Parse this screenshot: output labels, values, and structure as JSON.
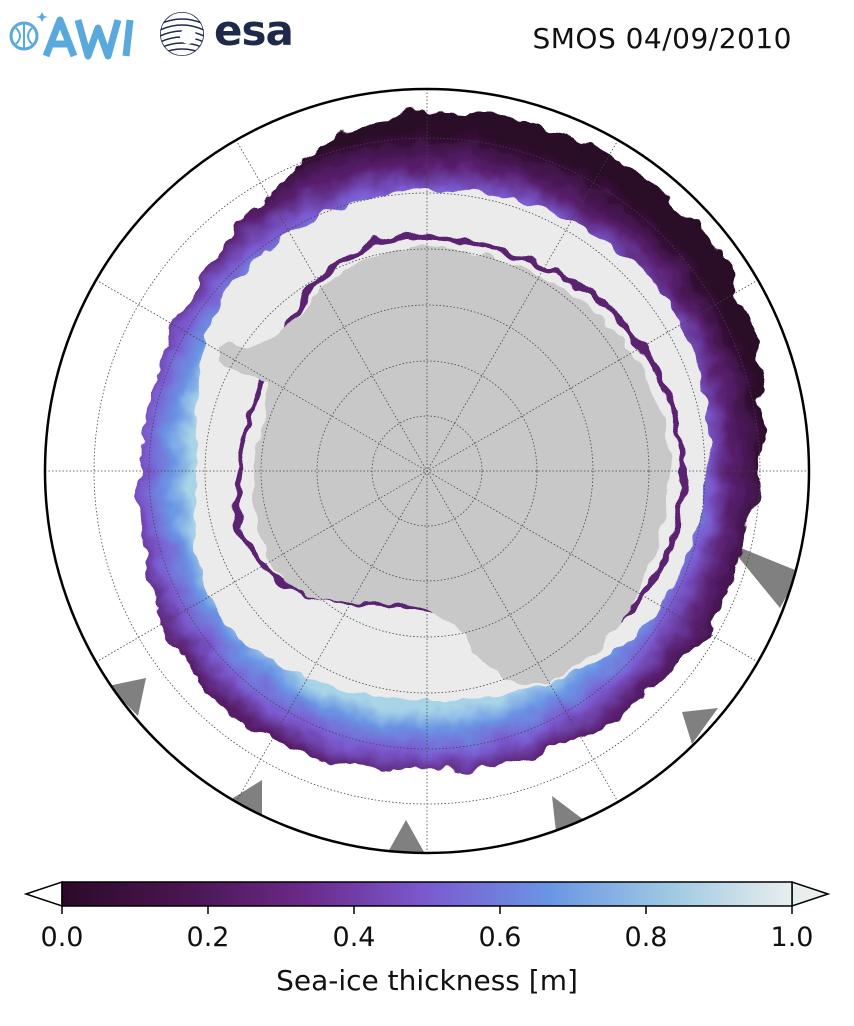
{
  "header": {
    "title": "SMOS 04/09/2010",
    "logos": [
      {
        "name": "AWI",
        "text": "AWI",
        "color": "#5aa9dd"
      },
      {
        "name": "esa",
        "text": "esa",
        "color": "#1f2a4a"
      }
    ]
  },
  "map": {
    "projection": "south-polar-stereographic",
    "land_color": "#c8c8c8",
    "thick_ice_color": "#ebebeb",
    "ocean_color": "#ffffff",
    "no_data_color": "#808080",
    "graticule": "dotted"
  },
  "colorbar": {
    "label": "Sea-ice thickness [m]",
    "ticks": [
      "0.0",
      "0.2",
      "0.4",
      "0.6",
      "0.8",
      "1.0"
    ],
    "min": 0.0,
    "max": 1.0,
    "extend": "both",
    "colormap": [
      "#2b0a28",
      "#4a1550",
      "#6a2a8a",
      "#7b5ad0",
      "#6a95e4",
      "#9ec9e3",
      "#e8eeee"
    ]
  }
}
